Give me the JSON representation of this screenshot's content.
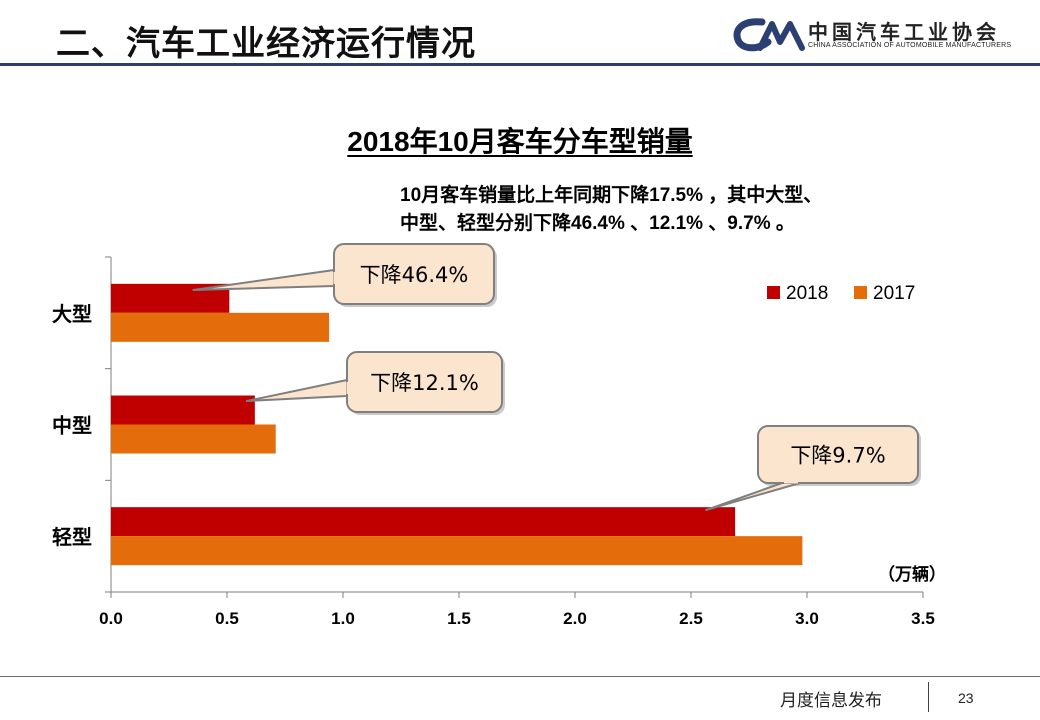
{
  "header": {
    "title": "二、汽车工业经济运行情况",
    "logo_cn": "中国汽车工业协会",
    "logo_en": "CHINA ASSOCIATION OF AUTOMOBILE MANUFACTURERS"
  },
  "description": {
    "line1": "10月客车销量比上年同期下降17.5% ，其中大型、",
    "line2": "中型、轻型分别下降46.4% 、12.1% 、9.7% 。"
  },
  "chart_data": {
    "type": "bar",
    "orientation": "horizontal",
    "title": "2018年10月客车分车型销量",
    "categories": [
      "大型",
      "中型",
      "轻型"
    ],
    "series": [
      {
        "name": "2018",
        "color": "#c00000",
        "values": [
          0.51,
          0.62,
          2.69
        ]
      },
      {
        "name": "2017",
        "color": "#e46c0a",
        "values": [
          0.94,
          0.71,
          2.98
        ]
      }
    ],
    "xlim": [
      0,
      3.5
    ],
    "x_ticks": [
      "0.0",
      "0.5",
      "1.0",
      "1.5",
      "2.0",
      "2.5",
      "3.0",
      "3.5"
    ],
    "unit_label": "（万辆）",
    "legend_position": "top-right",
    "grid": false,
    "callouts": [
      "下降46.4%",
      "下降12.1%",
      "下降9.7%"
    ]
  },
  "footer": {
    "text": "月度信息发布",
    "page": "23"
  }
}
